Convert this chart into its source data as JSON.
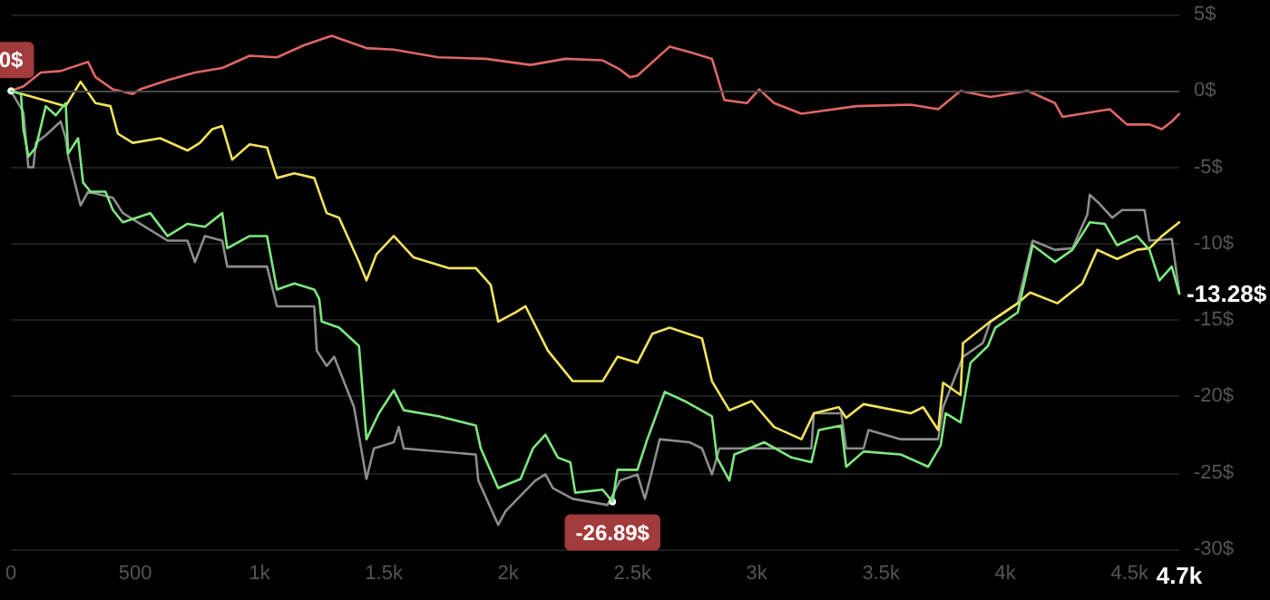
{
  "chart_data": {
    "type": "line",
    "xlim": [
      0,
      4700
    ],
    "xticks": [
      0,
      500,
      {
        "value": 1000,
        "label": "1k"
      },
      {
        "value": 1500,
        "label": "1.5k"
      },
      {
        "value": 2000,
        "label": "2k"
      },
      {
        "value": 2500,
        "label": "2.5k"
      },
      {
        "value": 3000,
        "label": "3k"
      },
      {
        "value": 3500,
        "label": "3.5k"
      },
      {
        "value": 4000,
        "label": "4k"
      },
      {
        "value": 4500,
        "label": "4.5k"
      },
      {
        "value": 4700,
        "label": "4.7k"
      }
    ],
    "ylim": [
      -30,
      5
    ],
    "yticks": [
      {
        "value": -30,
        "label": "-30$"
      },
      {
        "value": -25,
        "label": "-25$"
      },
      {
        "value": -20,
        "label": "-20$"
      },
      {
        "value": -15,
        "label": "-15$"
      },
      {
        "value": -10,
        "label": "-10$"
      },
      {
        "value": -5,
        "label": "-5$"
      },
      {
        "value": 0,
        "label": "0$"
      },
      {
        "value": 5,
        "label": "5$"
      }
    ],
    "grid": "y",
    "marker": "none",
    "line_style": "solid",
    "ref_lines": [
      {
        "axis": "y",
        "value": 0,
        "color": "#4a4a4a"
      }
    ],
    "annotations": [
      {
        "text": "0$",
        "x": 0,
        "y": 0
      },
      {
        "text": "-26.89$",
        "x": 2420,
        "y": -26.89
      },
      {
        "text": "-13.28$",
        "x": 4700,
        "y": -13.28
      }
    ],
    "series": [
      {
        "color": "#8c8c8c",
        "x": [
          0,
          50,
          70,
          90,
          100,
          140,
          200,
          220,
          230,
          280,
          310,
          410,
          450,
          630,
          710,
          740,
          780,
          850,
          870,
          1030,
          1070,
          1220,
          1230,
          1270,
          1300,
          1380,
          1430,
          1460,
          1540,
          1560,
          1580,
          1870,
          1880,
          1960,
          1990,
          2110,
          2150,
          2180,
          2260,
          2400,
          2450,
          2520,
          2550,
          2580,
          2610,
          2730,
          2780,
          2820,
          2850,
          3070,
          3220,
          3230,
          3340,
          3360,
          3430,
          3450,
          3580,
          3730,
          3750,
          3830,
          3910,
          3940,
          4050,
          4110,
          4200,
          4270,
          4330,
          4340,
          4380,
          4430,
          4470,
          4560,
          4580,
          4670,
          4700
        ],
        "values": [
          0,
          -1.4,
          -5.0,
          -5.0,
          -3.4,
          -2.9,
          -2.0,
          -3.1,
          -4.3,
          -7.5,
          -6.6,
          -7.0,
          -8.0,
          -9.8,
          -9.8,
          -11.2,
          -9.5,
          -9.8,
          -11.5,
          -11.5,
          -14.1,
          -14.1,
          -17.0,
          -18.0,
          -17.4,
          -20.7,
          -25.4,
          -23.4,
          -23.0,
          -22.0,
          -23.4,
          -23.8,
          -25.5,
          -28.4,
          -27.5,
          -25.5,
          -25.1,
          -26.0,
          -26.7,
          -27.1,
          -25.5,
          -25.1,
          -26.7,
          -24.8,
          -22.8,
          -23.0,
          -23.4,
          -25.1,
          -23.4,
          -23.4,
          -23.4,
          -21.1,
          -21.1,
          -23.4,
          -23.4,
          -22.2,
          -22.8,
          -22.8,
          -20.7,
          -17.4,
          -16.5,
          -15.1,
          -13.9,
          -9.8,
          -10.4,
          -10.3,
          -8.1,
          -6.8,
          -7.4,
          -8.3,
          -7.8,
          -7.8,
          -9.8,
          -9.7,
          -13.2
        ]
      },
      {
        "color": "#e06666",
        "x": [
          0,
          50,
          120,
          200,
          310,
          340,
          410,
          490,
          520,
          630,
          740,
          850,
          960,
          1070,
          1180,
          1290,
          1430,
          1540,
          1720,
          1910,
          2090,
          2230,
          2380,
          2450,
          2490,
          2520,
          2650,
          2740,
          2820,
          2870,
          2960,
          3010,
          3070,
          3180,
          3400,
          3620,
          3730,
          3820,
          3940,
          4090,
          4200,
          4230,
          4420,
          4490,
          4580,
          4630,
          4670,
          4700
        ],
        "values": [
          0,
          0.3,
          1.2,
          1.3,
          1.9,
          0.9,
          0.1,
          -0.2,
          0.1,
          0.7,
          1.2,
          1.5,
          2.3,
          2.2,
          3.0,
          3.6,
          2.8,
          2.7,
          2.2,
          2.1,
          1.7,
          2.1,
          2.0,
          1.4,
          0.9,
          1.0,
          2.9,
          2.5,
          2.1,
          -0.6,
          -0.8,
          0.1,
          -0.8,
          -1.5,
          -1.0,
          -0.9,
          -1.2,
          0,
          -0.4,
          0,
          -0.8,
          -1.7,
          -1.2,
          -2.2,
          -2.2,
          -2.5,
          -2.0,
          -1.5
        ]
      },
      {
        "color": "#f2e35c",
        "x": [
          0,
          220,
          280,
          340,
          400,
          430,
          490,
          600,
          710,
          760,
          810,
          850,
          890,
          960,
          1030,
          1070,
          1140,
          1220,
          1270,
          1320,
          1400,
          1430,
          1470,
          1540,
          1620,
          1760,
          1870,
          1930,
          1960,
          2030,
          2070,
          2160,
          2260,
          2380,
          2440,
          2520,
          2580,
          2650,
          2780,
          2820,
          2890,
          2980,
          3070,
          3180,
          3230,
          3330,
          3360,
          3430,
          3620,
          3670,
          3730,
          3750,
          3820,
          3830,
          3940,
          4050,
          4100,
          4210,
          4310,
          4370,
          4450,
          4530,
          4580,
          4630,
          4700
        ],
        "values": [
          0,
          -1.0,
          0.6,
          -0.8,
          -1.0,
          -2.8,
          -3.4,
          -3.1,
          -3.9,
          -3.4,
          -2.5,
          -2.3,
          -4.5,
          -3.5,
          -3.7,
          -5.7,
          -5.4,
          -5.7,
          -8.0,
          -8.3,
          -11.2,
          -12.4,
          -10.7,
          -9.5,
          -10.9,
          -11.6,
          -11.6,
          -12.7,
          -15.1,
          -14.5,
          -14.1,
          -17.0,
          -19.0,
          -19.0,
          -17.4,
          -17.8,
          -15.9,
          -15.5,
          -16.2,
          -19.0,
          -20.9,
          -20.3,
          -22.0,
          -22.8,
          -21.1,
          -20.7,
          -21.4,
          -20.5,
          -21.1,
          -20.7,
          -22.2,
          -19.1,
          -19.9,
          -16.5,
          -15.1,
          -13.9,
          -13.2,
          -13.9,
          -12.6,
          -10.4,
          -11.0,
          -10.4,
          -10.3,
          -9.5,
          -8.6
        ]
      },
      {
        "color": "#7ee87e",
        "x": [
          0,
          40,
          50,
          70,
          100,
          140,
          180,
          220,
          230,
          270,
          290,
          320,
          380,
          410,
          450,
          560,
          630,
          710,
          780,
          850,
          870,
          960,
          1030,
          1070,
          1140,
          1220,
          1240,
          1250,
          1320,
          1400,
          1430,
          1480,
          1540,
          1580,
          1720,
          1870,
          1890,
          1960,
          2050,
          2100,
          2150,
          2200,
          2250,
          2270,
          2380,
          2420,
          2440,
          2520,
          2560,
          2630,
          2710,
          2820,
          2840,
          2890,
          2910,
          3030,
          3140,
          3220,
          3250,
          3340,
          3360,
          3430,
          3580,
          3690,
          3740,
          3760,
          3820,
          3860,
          3930,
          3960,
          4050,
          4110,
          4200,
          4270,
          4340,
          4400,
          4450,
          4530,
          4580,
          4620,
          4670,
          4700
        ],
        "values": [
          0,
          -0.2,
          -2.5,
          -4.3,
          -3.7,
          -1.0,
          -1.6,
          -0.8,
          -4.1,
          -3.1,
          -6.0,
          -6.6,
          -6.6,
          -7.8,
          -8.6,
          -8.0,
          -9.5,
          -8.7,
          -8.9,
          -8.0,
          -10.3,
          -9.5,
          -9.5,
          -13.0,
          -12.6,
          -13.0,
          -13.6,
          -15.1,
          -15.5,
          -16.7,
          -22.8,
          -21.1,
          -19.6,
          -20.9,
          -21.3,
          -21.9,
          -23.4,
          -26.0,
          -25.4,
          -23.4,
          -22.5,
          -24.0,
          -24.3,
          -26.3,
          -26.1,
          -26.89,
          -24.8,
          -24.8,
          -22.8,
          -19.7,
          -20.3,
          -21.3,
          -24.0,
          -25.5,
          -23.8,
          -23.0,
          -24.0,
          -24.3,
          -22.2,
          -21.9,
          -24.6,
          -23.6,
          -23.8,
          -24.6,
          -23.2,
          -21.1,
          -21.7,
          -17.8,
          -16.7,
          -15.5,
          -14.5,
          -10.1,
          -11.2,
          -10.4,
          -8.6,
          -8.7,
          -10.1,
          -9.5,
          -10.4,
          -12.4,
          -11.5,
          -13.28
        ]
      }
    ]
  }
}
